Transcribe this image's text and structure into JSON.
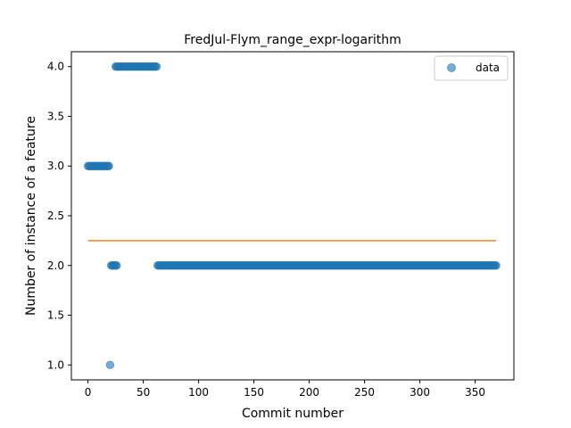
{
  "chart_data": {
    "type": "scatter",
    "title": "FredJul-Flym_range_expr-logarithm",
    "xlabel": "Commit number",
    "ylabel": "Number of instance of a feature",
    "xlim": [
      -15,
      385
    ],
    "ylim": [
      0.85,
      4.15
    ],
    "xticks": [
      0,
      50,
      100,
      150,
      200,
      250,
      300,
      350
    ],
    "yticks": [
      1.0,
      1.5,
      2.0,
      2.5,
      3.0,
      3.5,
      4.0
    ],
    "ytick_labels": [
      "1.0",
      "1.5",
      "2.0",
      "2.5",
      "3.0",
      "3.5",
      "4.0"
    ],
    "legend": {
      "position": "top-right",
      "entries": [
        "data"
      ]
    },
    "grid": false,
    "series": [
      {
        "name": "data",
        "kind": "scatter",
        "color": "#1f77b4",
        "segments": [
          {
            "x_start": 0,
            "x_end": 19,
            "y": 3.0
          },
          {
            "x_start": 20,
            "x_end": 20,
            "y": 1.0
          },
          {
            "x_start": 21,
            "x_end": 26,
            "y": 2.0
          },
          {
            "x_start": 25,
            "x_end": 62,
            "y": 4.0
          },
          {
            "x_start": 63,
            "x_end": 369,
            "y": 2.0
          }
        ]
      },
      {
        "kind": "line",
        "color": "#ff7f0e",
        "x": [
          0,
          369
        ],
        "y": [
          2.25,
          2.25
        ]
      }
    ]
  }
}
